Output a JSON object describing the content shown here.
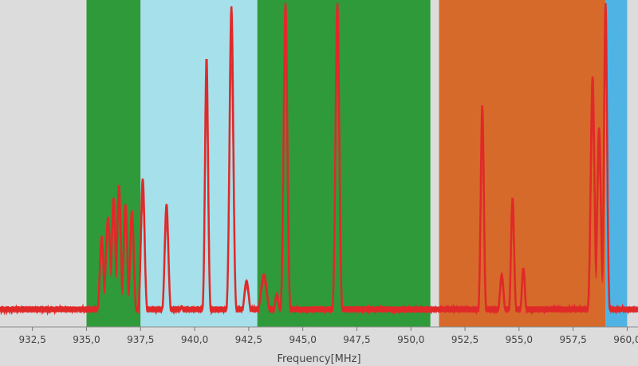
{
  "chart_data": {
    "type": "area",
    "xlabel": "Frequency[MHz]",
    "xlim": [
      931.0,
      960.5
    ],
    "ylim": [
      0,
      100
    ],
    "x_ticks": [
      932.5,
      935.0,
      937.5,
      940.0,
      942.5,
      945.0,
      947.5,
      950.0,
      952.5,
      955.0,
      957.5,
      960.0
    ],
    "x_tick_labels": [
      "932,5",
      "935,0",
      "937,5",
      "940,0",
      "942,5",
      "945,0",
      "947,5",
      "950,0",
      "952,5",
      "955,0",
      "957,5",
      "960,0"
    ],
    "bands": [
      {
        "start": 935.0,
        "end": 937.5,
        "color": "#2f9a3a"
      },
      {
        "start": 937.5,
        "end": 942.9,
        "color": "#a6e0ea"
      },
      {
        "start": 942.9,
        "end": 950.9,
        "color": "#2f9a3a"
      },
      {
        "start": 951.3,
        "end": 959.0,
        "color": "#d66a2a"
      },
      {
        "start": 959.0,
        "end": 960.0,
        "color": "#4fb3e4"
      }
    ],
    "series": [
      {
        "color": "#e02a2a",
        "noise_floor": 3,
        "peaks": [
          {
            "f": 935.7,
            "amp": 26,
            "w": 0.12
          },
          {
            "f": 936.0,
            "amp": 32,
            "w": 0.15
          },
          {
            "f": 936.25,
            "amp": 38,
            "w": 0.12
          },
          {
            "f": 936.5,
            "amp": 42,
            "w": 0.12
          },
          {
            "f": 936.8,
            "amp": 36,
            "w": 0.12
          },
          {
            "f": 937.1,
            "amp": 34,
            "w": 0.12
          },
          {
            "f": 937.6,
            "amp": 44,
            "w": 0.12
          },
          {
            "f": 938.7,
            "amp": 36,
            "w": 0.12
          },
          {
            "f": 939.4,
            "amp": 4,
            "w": 0.1
          },
          {
            "f": 940.55,
            "amp": 82,
            "w": 0.1
          },
          {
            "f": 941.7,
            "amp": 98,
            "w": 0.12
          },
          {
            "f": 942.4,
            "amp": 12,
            "w": 0.15
          },
          {
            "f": 943.2,
            "amp": 14,
            "w": 0.2
          },
          {
            "f": 943.8,
            "amp": 8,
            "w": 0.12
          },
          {
            "f": 944.2,
            "amp": 99,
            "w": 0.12
          },
          {
            "f": 946.6,
            "amp": 99,
            "w": 0.12
          },
          {
            "f": 953.3,
            "amp": 67,
            "w": 0.1
          },
          {
            "f": 954.2,
            "amp": 14,
            "w": 0.12
          },
          {
            "f": 954.7,
            "amp": 38,
            "w": 0.1
          },
          {
            "f": 955.2,
            "amp": 16,
            "w": 0.1
          },
          {
            "f": 958.4,
            "amp": 76,
            "w": 0.12
          },
          {
            "f": 958.7,
            "amp": 60,
            "w": 0.12
          },
          {
            "f": 959.0,
            "amp": 99,
            "w": 0.1
          }
        ]
      }
    ],
    "grid": false
  }
}
